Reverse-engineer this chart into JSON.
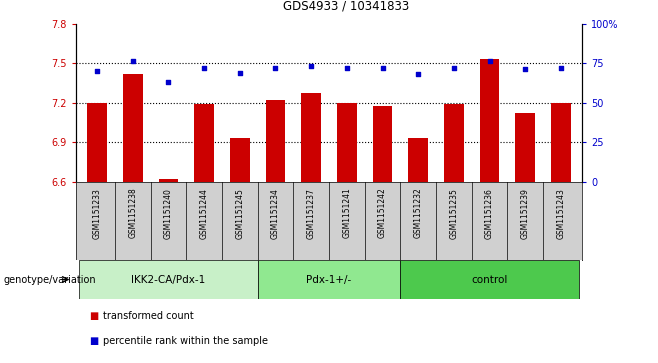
{
  "title": "GDS4933 / 10341833",
  "samples": [
    "GSM1151233",
    "GSM1151238",
    "GSM1151240",
    "GSM1151244",
    "GSM1151245",
    "GSM1151234",
    "GSM1151237",
    "GSM1151241",
    "GSM1151242",
    "GSM1151232",
    "GSM1151235",
    "GSM1151236",
    "GSM1151239",
    "GSM1151243"
  ],
  "red_values": [
    7.2,
    7.42,
    6.62,
    7.19,
    6.93,
    7.22,
    7.27,
    7.2,
    7.17,
    6.93,
    7.19,
    7.53,
    7.12,
    7.2
  ],
  "blue_values": [
    70,
    76,
    63,
    72,
    69,
    72,
    73,
    72,
    72,
    68,
    72,
    76,
    71,
    72
  ],
  "ylim_left": [
    6.6,
    7.8
  ],
  "ylim_right": [
    0,
    100
  ],
  "yticks_left": [
    6.6,
    6.9,
    7.2,
    7.5,
    7.8
  ],
  "yticks_right": [
    0,
    25,
    50,
    75,
    100
  ],
  "yticklabels_right": [
    "0",
    "25",
    "50",
    "75",
    "100%"
  ],
  "dotted_yticks": [
    6.9,
    7.2,
    7.5
  ],
  "groups": [
    {
      "label": "IKK2-CA/Pdx-1",
      "start": 0,
      "end": 5,
      "color": "#c8f0c8"
    },
    {
      "label": "Pdx-1+/-",
      "start": 5,
      "end": 9,
      "color": "#90e890"
    },
    {
      "label": "control",
      "start": 9,
      "end": 14,
      "color": "#4dc94d"
    }
  ],
  "legend_red": "transformed count",
  "legend_blue": "percentile rank within the sample",
  "xlabel_left": "genotype/variation",
  "bar_color": "#cc0000",
  "dot_color": "#0000cc",
  "bar_width": 0.55,
  "sample_box_color": "#d0d0d0",
  "bg_color": "#ffffff"
}
